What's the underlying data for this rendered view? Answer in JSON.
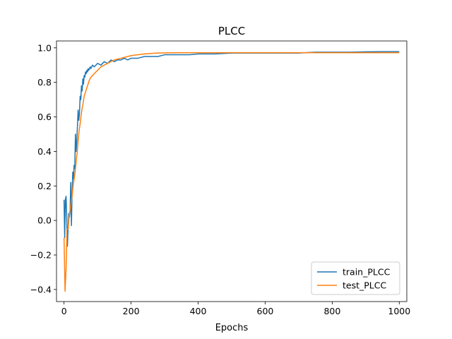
{
  "chart_data": {
    "type": "line",
    "title": "PLCC",
    "xlabel": "Epochs",
    "ylabel": "",
    "xlim": [
      -22.5,
      1022.5
    ],
    "ylim": [
      -0.47,
      1.04
    ],
    "xticks": [
      0,
      200,
      400,
      600,
      800,
      1000
    ],
    "xtick_labels": [
      "0",
      "200",
      "400",
      "600",
      "800",
      "1000"
    ],
    "yticks": [
      -0.4,
      -0.2,
      0.0,
      0.2,
      0.4,
      0.6,
      0.8,
      1.0
    ],
    "ytick_labels": [
      "−0.4",
      "−0.2",
      "0.0",
      "0.2",
      "0.4",
      "0.6",
      "0.8",
      "1.0"
    ],
    "grid": false,
    "legend_position": "lower-right",
    "series": [
      {
        "name": "train_PLCC",
        "color": "#1f77b4",
        "x": [
          0,
          2,
          4,
          6,
          8,
          10,
          12,
          14,
          16,
          18,
          20,
          22,
          24,
          26,
          28,
          30,
          32,
          34,
          36,
          38,
          40,
          42,
          44,
          46,
          48,
          50,
          52,
          54,
          56,
          58,
          60,
          62,
          64,
          66,
          68,
          70,
          72,
          74,
          76,
          78,
          80,
          85,
          90,
          95,
          100,
          110,
          120,
          130,
          140,
          150,
          160,
          170,
          180,
          190,
          200,
          220,
          240,
          260,
          280,
          300,
          325,
          350,
          375,
          400,
          450,
          500,
          550,
          600,
          650,
          700,
          750,
          800,
          850,
          900,
          950,
          1000
        ],
        "y": [
          0.12,
          -0.1,
          0.12,
          0.14,
          0.02,
          -0.15,
          -0.05,
          0.04,
          0.02,
          0.05,
          0.22,
          -0.03,
          0.16,
          0.28,
          0.24,
          0.32,
          0.3,
          0.5,
          0.4,
          0.46,
          0.55,
          0.64,
          0.58,
          0.62,
          0.72,
          0.7,
          0.78,
          0.75,
          0.82,
          0.79,
          0.84,
          0.83,
          0.86,
          0.85,
          0.87,
          0.86,
          0.88,
          0.87,
          0.88,
          0.89,
          0.88,
          0.9,
          0.89,
          0.9,
          0.91,
          0.9,
          0.92,
          0.91,
          0.93,
          0.92,
          0.93,
          0.93,
          0.94,
          0.93,
          0.94,
          0.94,
          0.95,
          0.95,
          0.95,
          0.96,
          0.96,
          0.96,
          0.96,
          0.965,
          0.965,
          0.97,
          0.97,
          0.97,
          0.97,
          0.97,
          0.975,
          0.975,
          0.975,
          0.977,
          0.978,
          0.978
        ]
      },
      {
        "name": "test_PLCC",
        "color": "#ff7f0e",
        "x": [
          0,
          3,
          6,
          9,
          12,
          15,
          18,
          21,
          24,
          27,
          30,
          33,
          36,
          39,
          42,
          45,
          48,
          51,
          54,
          57,
          60,
          65,
          70,
          75,
          80,
          90,
          100,
          110,
          120,
          130,
          140,
          150,
          160,
          170,
          180,
          190,
          200,
          220,
          240,
          260,
          280,
          300,
          350,
          400,
          450,
          500,
          600,
          700,
          800,
          900,
          1000
        ],
        "y": [
          -0.1,
          -0.41,
          -0.28,
          -0.05,
          -0.05,
          0.02,
          0.06,
          0.1,
          0.14,
          0.2,
          0.24,
          0.28,
          0.34,
          0.39,
          0.46,
          0.52,
          0.56,
          0.61,
          0.65,
          0.68,
          0.72,
          0.75,
          0.78,
          0.81,
          0.83,
          0.85,
          0.87,
          0.89,
          0.9,
          0.91,
          0.92,
          0.93,
          0.935,
          0.94,
          0.945,
          0.95,
          0.955,
          0.96,
          0.965,
          0.968,
          0.97,
          0.971,
          0.972,
          0.972,
          0.972,
          0.972,
          0.972,
          0.972,
          0.972,
          0.972,
          0.972
        ]
      }
    ]
  }
}
